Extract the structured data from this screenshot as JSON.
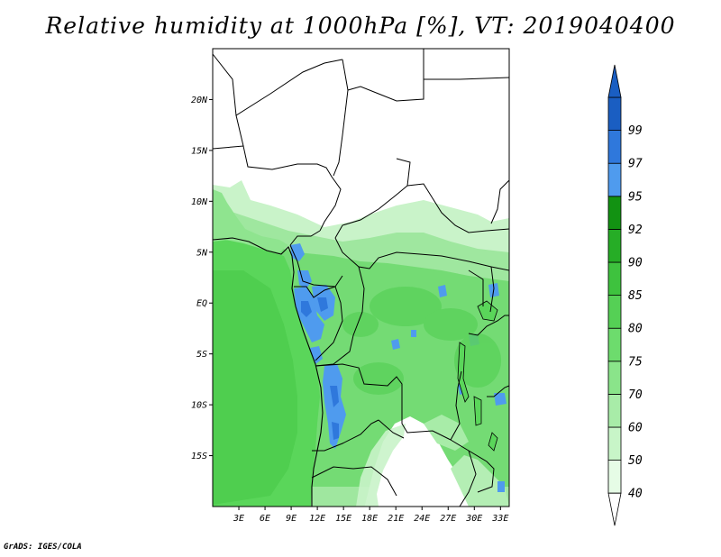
{
  "title": "Relative humidity at 1000hPa [%], VT: 2019040400",
  "credit": "GrADS: IGES/COLA",
  "map": {
    "lon_range": [
      0,
      34
    ],
    "lat_range": [
      -20,
      25
    ],
    "lat_ticks": [
      {
        "value": 20,
        "label": "20N"
      },
      {
        "value": 15,
        "label": "15N"
      },
      {
        "value": 10,
        "label": "10N"
      },
      {
        "value": 5,
        "label": "5N"
      },
      {
        "value": 0,
        "label": "EQ"
      },
      {
        "value": -5,
        "label": "5S"
      },
      {
        "value": -10,
        "label": "10S"
      },
      {
        "value": -15,
        "label": "15S"
      }
    ],
    "lon_ticks": [
      {
        "value": 3,
        "label": "3E"
      },
      {
        "value": 6,
        "label": "6E"
      },
      {
        "value": 9,
        "label": "9E"
      },
      {
        "value": 12,
        "label": "12E"
      },
      {
        "value": 15,
        "label": "15E"
      },
      {
        "value": 18,
        "label": "18E"
      },
      {
        "value": 21,
        "label": "21E"
      },
      {
        "value": 24,
        "label": "24E"
      },
      {
        "value": 27,
        "label": "27E"
      },
      {
        "value": 30,
        "label": "30E"
      },
      {
        "value": 33,
        "label": "33E"
      }
    ]
  },
  "colorbar": {
    "levels": [
      40,
      50,
      60,
      70,
      75,
      80,
      85,
      90,
      92,
      95,
      97,
      99
    ],
    "labels": [
      "40",
      "50",
      "60",
      "70",
      "75",
      "80",
      "85",
      "90",
      "92",
      "95",
      "97",
      "99"
    ],
    "colors": [
      "#e6fce6",
      "#c8f5c8",
      "#a8eca8",
      "#8ae48a",
      "#6ddc6d",
      "#55d055",
      "#3ec23e",
      "#26ad26",
      "#129212",
      "#4f9bee",
      "#2f78dc",
      "#1a5ec2"
    ]
  },
  "colors": {
    "ocean": "#5ad65a",
    "ocean_dark": "#4ec94e",
    "land_green": "#6ed96e",
    "land_light": "#b9f0b9",
    "land_mid": "#8fe48f",
    "dry": "#ffffff",
    "wet_blue": "#4f9bee",
    "wet_blue_dark": "#2f78dc"
  }
}
